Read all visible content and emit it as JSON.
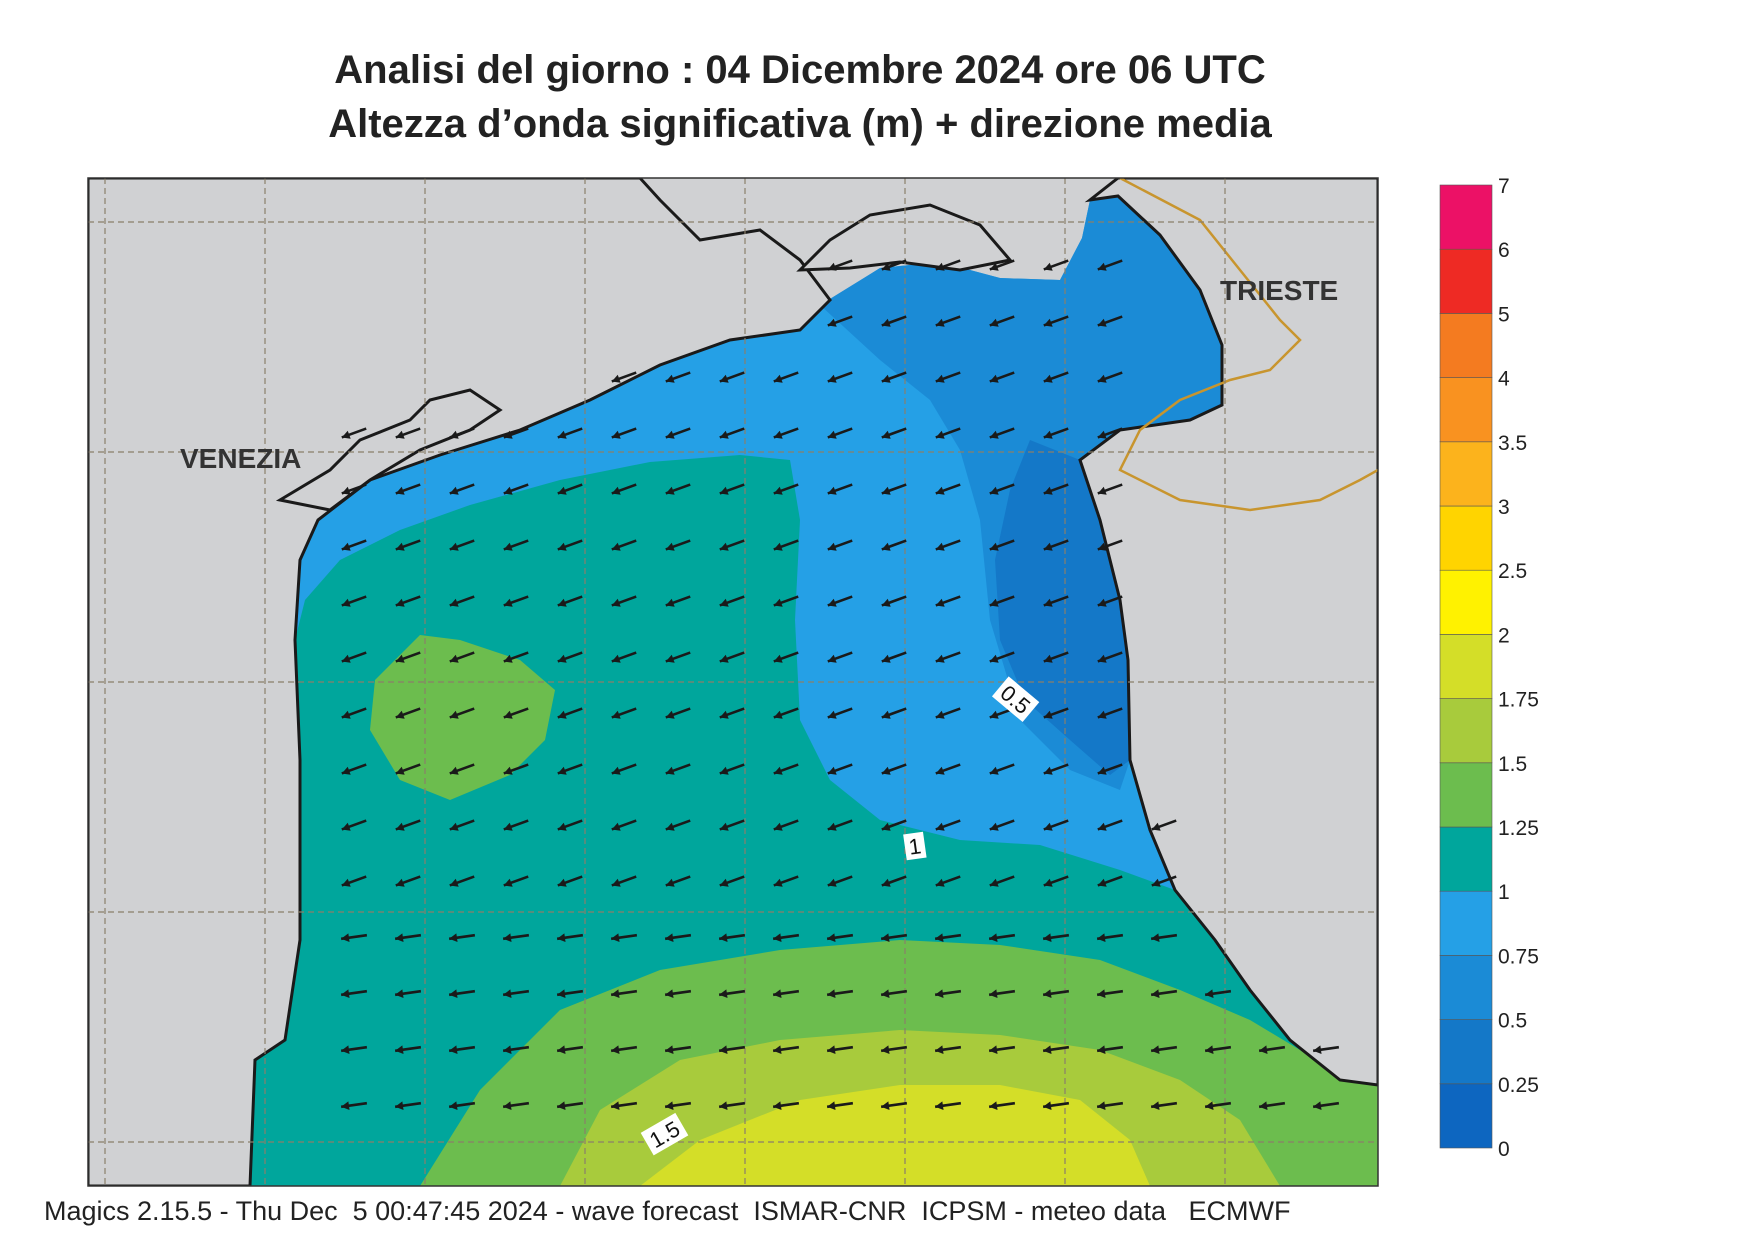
{
  "title": {
    "line1": "Analisi del giorno :  04 Dicembre  2024   ore 06 UTC",
    "line2": "Altezza d’onda significativa (m) + direzione media"
  },
  "places": {
    "venezia": "VENEZIA",
    "trieste": "TRIESTE"
  },
  "contour_labels": [
    "0.5",
    "1",
    "1.5"
  ],
  "legend": {
    "labels": [
      "0",
      "0.25",
      "0.5",
      "0.75",
      "1",
      "1.25",
      "1.5",
      "1.75",
      "2",
      "2.5",
      "3",
      "3.5",
      "4",
      "5",
      "6",
      "7"
    ],
    "colors": [
      "#0d66c0",
      "#1478c8",
      "#1b8bd6",
      "#25a0e6",
      "#00a69c",
      "#6cbd4e",
      "#a8cb3c",
      "#d4de28",
      "#fff200",
      "#ffd400",
      "#fcb31c",
      "#f99220",
      "#f47b20",
      "#ee2a24",
      "#ec1166"
    ]
  },
  "footer": "Magics 2.15.5 - Thu Dec  5 00:47:45 2024 - wave forecast  ISMAR-CNR  ICPSM - meteo data   ECMWF",
  "colors": {
    "land": "#d0d1d3",
    "coast": "#1a1a1a",
    "border": "#c8952e",
    "grid": "#8a7f6a",
    "arrow": "#1a1a1a"
  },
  "wave_direction": "south-west"
}
